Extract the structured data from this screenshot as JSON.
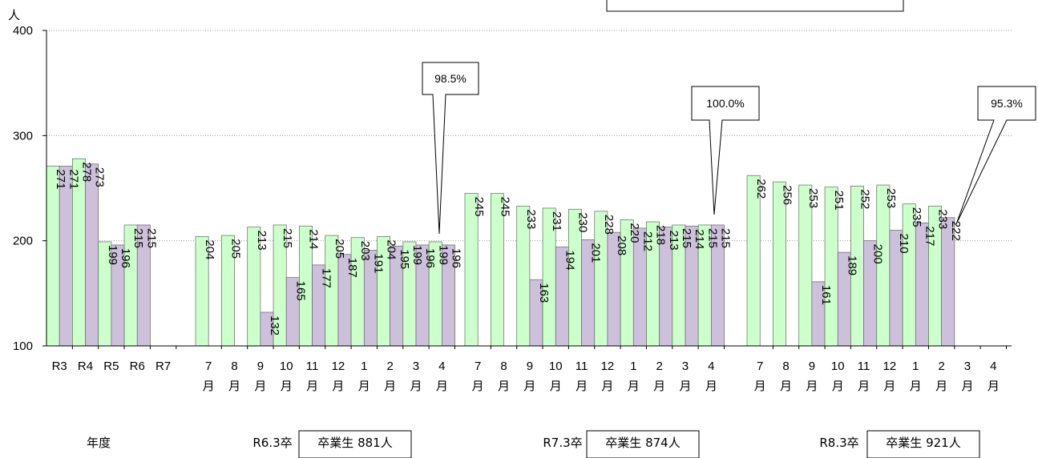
{
  "chart_data": {
    "type": "bar",
    "yunit": "人",
    "ylim": [
      100,
      400
    ],
    "yticks": [
      100,
      200,
      300,
      400
    ],
    "grid": true,
    "series_colors": {
      "green": "#ccffcc",
      "purple": "#ccc0da"
    },
    "year_label": "年度",
    "groups": [
      {
        "kind": "year",
        "items": [
          {
            "label": "R3",
            "green": 271,
            "purple": 271
          },
          {
            "label": "R4",
            "green": 278,
            "purple": 273
          },
          {
            "label": "R5",
            "green": 199,
            "purple": 196
          },
          {
            "label": "R6",
            "green": 215,
            "purple": 215
          },
          {
            "label": "R7",
            "green": null,
            "purple": null
          }
        ]
      },
      {
        "kind": "month",
        "title": "R6.3卒",
        "graduates": "卒業生 881人",
        "rate": "98.5%",
        "items": [
          {
            "label": "7",
            "green": 204,
            "purple": null
          },
          {
            "label": "8",
            "green": 205,
            "purple": null
          },
          {
            "label": "9",
            "green": 213,
            "purple": 132
          },
          {
            "label": "10",
            "green": 215,
            "purple": 165
          },
          {
            "label": "11",
            "green": 214,
            "purple": 177
          },
          {
            "label": "12",
            "green": 205,
            "purple": 187
          },
          {
            "label": "1",
            "green": 203,
            "purple": 191
          },
          {
            "label": "2",
            "green": 204,
            "purple": 195
          },
          {
            "label": "3",
            "green": 199,
            "purple": 196
          },
          {
            "label": "4",
            "green": 199,
            "purple": 196
          }
        ]
      },
      {
        "kind": "month",
        "title": "R7.3卒",
        "graduates": "卒業生 874人",
        "rate": "100.0%",
        "items": [
          {
            "label": "7",
            "green": 245,
            "purple": null
          },
          {
            "label": "8",
            "green": 245,
            "purple": null
          },
          {
            "label": "9",
            "green": 233,
            "purple": 163
          },
          {
            "label": "10",
            "green": 231,
            "purple": 194
          },
          {
            "label": "11",
            "green": 230,
            "purple": 201
          },
          {
            "label": "12",
            "green": 228,
            "purple": 208
          },
          {
            "label": "1",
            "green": 220,
            "purple": 212
          },
          {
            "label": "2",
            "green": 218,
            "purple": 213
          },
          {
            "label": "3",
            "green": 215,
            "purple": 214
          },
          {
            "label": "4",
            "green": 215,
            "purple": 215
          }
        ]
      },
      {
        "kind": "month",
        "title": "R8.3卒",
        "graduates": "卒業生 921人",
        "rate": "95.3%",
        "items": [
          {
            "label": "7",
            "green": 262,
            "purple": null
          },
          {
            "label": "8",
            "green": 256,
            "purple": null
          },
          {
            "label": "9",
            "green": 253,
            "purple": 161
          },
          {
            "label": "10",
            "green": 251,
            "purple": 189
          },
          {
            "label": "11",
            "green": 252,
            "purple": 200
          },
          {
            "label": "12",
            "green": 253,
            "purple": 210
          },
          {
            "label": "1",
            "green": 235,
            "purple": 217
          },
          {
            "label": "2",
            "green": 233,
            "purple": 222
          },
          {
            "label": "3",
            "green": null,
            "purple": null
          },
          {
            "label": "4",
            "green": null,
            "purple": null
          }
        ]
      }
    ],
    "month_suffix": "月"
  }
}
